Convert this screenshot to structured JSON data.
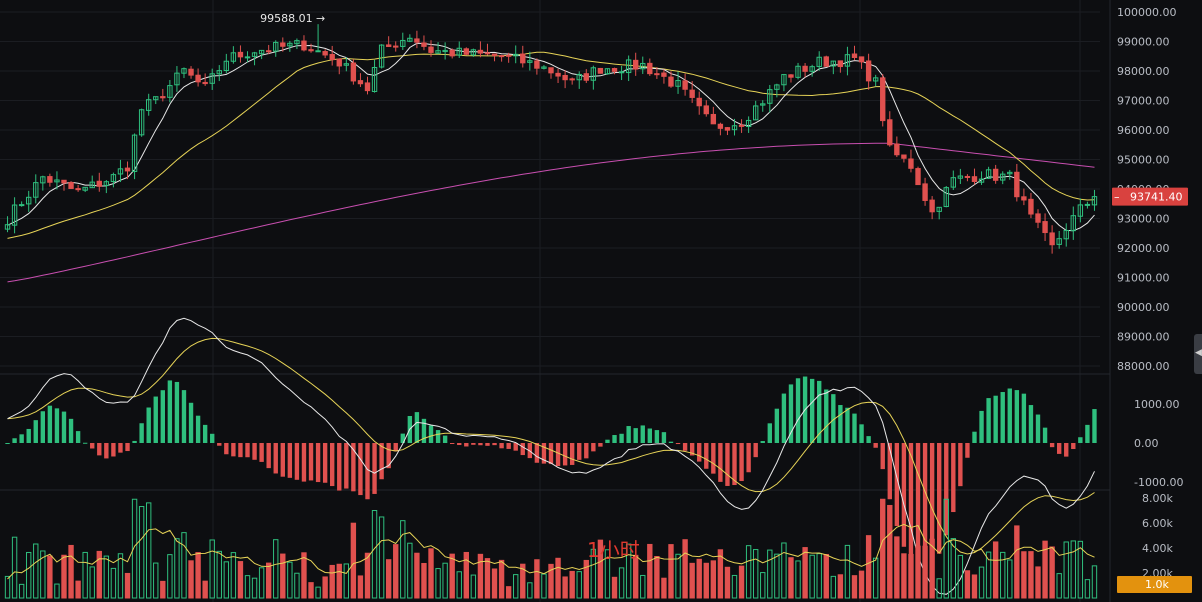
{
  "chart_data": {
    "type": "candlestick",
    "interval_label": "1小时",
    "price_panel": {
      "ylim": [
        87600,
        100300
      ],
      "ticks": [
        "100000.00",
        "99000.00",
        "98000.00",
        "97000.00",
        "96000.00",
        "95000.00",
        "94000.00",
        "93000.00",
        "92000.00",
        "91000.00",
        "90000.00",
        "89000.00",
        "88000.00"
      ],
      "tick_values": [
        100000,
        99000,
        98000,
        97000,
        96000,
        95000,
        94000,
        93000,
        92000,
        91000,
        90000,
        89000,
        88000
      ],
      "last_price_label": "93741.40",
      "last_price": 93741.4,
      "max_label": "99588.01 →",
      "max_price": 99588.01,
      "max_index": 44,
      "candle_count": 155,
      "anchors": [
        [
          0,
          93000
        ],
        [
          5,
          94400
        ],
        [
          10,
          93900
        ],
        [
          15,
          94400
        ],
        [
          17,
          94800
        ],
        [
          19,
          96700
        ],
        [
          21,
          97000
        ],
        [
          25,
          98000
        ],
        [
          28,
          97400
        ],
        [
          31,
          98400
        ],
        [
          35,
          98700
        ],
        [
          42,
          98900
        ],
        [
          47,
          98300
        ],
        [
          51,
          97400
        ],
        [
          53,
          98700
        ],
        [
          57,
          99200
        ],
        [
          60,
          98700
        ],
        [
          64,
          98600
        ],
        [
          70,
          98500
        ],
        [
          75,
          98200
        ],
        [
          78,
          97900
        ],
        [
          80,
          97600
        ],
        [
          84,
          98100
        ],
        [
          90,
          98200
        ],
        [
          95,
          97500
        ],
        [
          100,
          96100
        ],
        [
          104,
          96300
        ],
        [
          107,
          97000
        ],
        [
          110,
          97800
        ],
        [
          115,
          98300
        ],
        [
          120,
          98400
        ],
        [
          123,
          97600
        ],
        [
          125,
          95300
        ],
        [
          128,
          94800
        ],
        [
          131,
          93200
        ],
        [
          134,
          94300
        ],
        [
          138,
          94500
        ],
        [
          142,
          94400
        ],
        [
          145,
          93000
        ],
        [
          148,
          92000
        ],
        [
          150,
          92700
        ],
        [
          152,
          93300
        ],
        [
          154,
          93741
        ]
      ],
      "ma_colors": {
        "ma_short": "#e8e8e8",
        "ma_mid": "#e6d357",
        "ma_long": "#c84fb0"
      }
    },
    "macd_panel": {
      "ticks": [
        "1000.00",
        "0.00",
        "-1000.00"
      ],
      "tick_values": [
        1000,
        0,
        -1000
      ]
    },
    "volume_panel": {
      "ticks": [
        "8.00k",
        "6.00k",
        "4.00k",
        "2.00k"
      ],
      "tick_values": [
        8000,
        6000,
        4000,
        2000
      ],
      "current_volume_label": "1.0k"
    },
    "colors": {
      "up": "#2fbf7e",
      "down": "#e0514f",
      "badge_price": "#d9423f",
      "badge_volume": "#e3920e",
      "grid": "#1b1d22"
    }
  }
}
